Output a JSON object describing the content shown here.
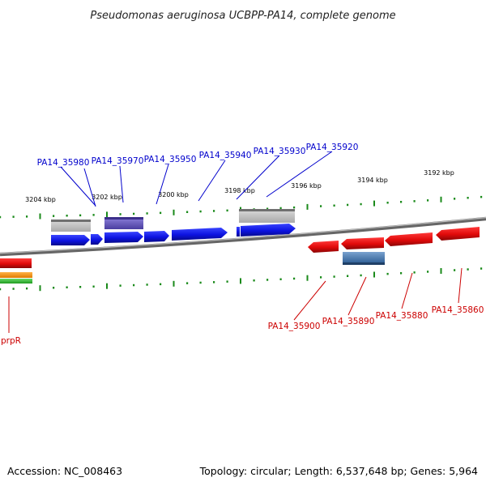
{
  "header": {
    "title": "Pseudomonas aeruginosa UCBPP-PA14, complete genome"
  },
  "footer": {
    "accession": "Accession: NC_008463",
    "summary": "Topology: circular; Length: 6,537,648 bp; Genes: 5,964"
  },
  "ruler": {
    "top_ticks": [
      "3204 kbp",
      "3202 kbp",
      "3200 kbp",
      "3198 kbp",
      "3196 kbp",
      "3194 kbp",
      "3192 kbp"
    ]
  },
  "genes": {
    "forward": [
      "PA14_35980",
      "PA14_35970",
      "PA14_35950",
      "PA14_35940",
      "PA14_35930",
      "PA14_35920"
    ],
    "reverse": [
      "PA14_35900",
      "PA14_35890",
      "PA14_35880",
      "PA14_35860",
      "prpR"
    ]
  },
  "colors": {
    "forward_gene": "#0a14e6",
    "reverse_gene": "#e60a0a",
    "backbone": "#777777",
    "tick": "#1a8a1a"
  }
}
